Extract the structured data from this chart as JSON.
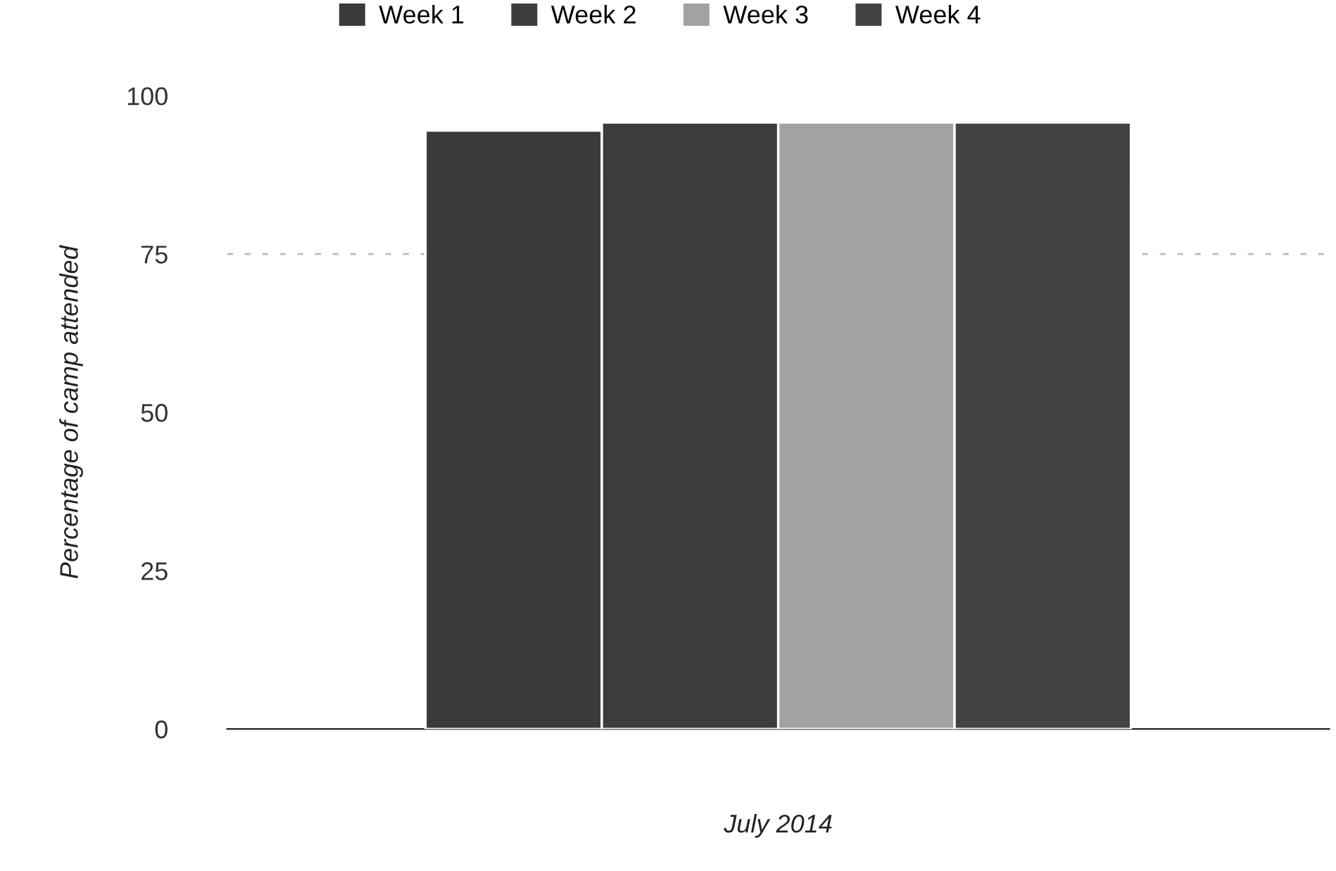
{
  "chart_data": {
    "type": "bar",
    "categories": [
      null
    ],
    "xlabel": "July 2014",
    "ylabel": "Percentage of camp attended",
    "series": [
      {
        "name": "Week 1",
        "color": "#3a3a3a",
        "values": [
          94.5
        ]
      },
      {
        "name": "Week 2",
        "color": "#3c3c3c",
        "values": [
          95.8
        ]
      },
      {
        "name": "Week 3",
        "color": "#a2a2a2",
        "values": [
          95.8
        ]
      },
      {
        "name": "Week 4",
        "color": "#424242",
        "values": [
          95.8
        ]
      }
    ],
    "ylim": [
      0,
      100
    ],
    "yticks": [
      0,
      25,
      50,
      75,
      100
    ],
    "grid": false,
    "legend": "top left",
    "ref_lines": [
      {
        "axis": "y",
        "value": 75,
        "color": "#bbbbbb",
        "line_style": "dashed"
      }
    ]
  }
}
